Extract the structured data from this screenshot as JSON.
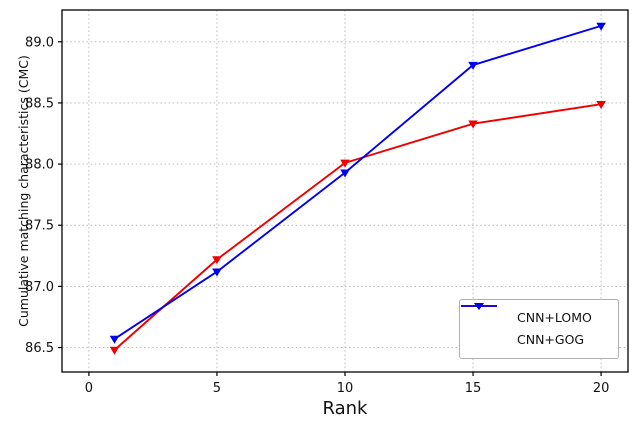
{
  "figure": {
    "background": "#ffffff",
    "spine_color": "#000000",
    "tick_label_color": "#111111"
  },
  "chart_data": {
    "type": "line",
    "title": "",
    "xlabel": "Rank",
    "ylabel": "Cumulative matching characteristics (CMC)",
    "x": [
      1,
      5,
      10,
      15,
      20
    ],
    "series": [
      {
        "name": "CNN+LOMO",
        "color": "#ee0000",
        "marker": "triangle-down",
        "values": [
          86.48,
          87.22,
          88.01,
          88.33,
          88.49
        ]
      },
      {
        "name": "CNN+GOG",
        "color": "#0000ee",
        "marker": "triangle-down",
        "values": [
          86.57,
          87.12,
          87.93,
          88.81,
          89.13
        ]
      }
    ],
    "xlim": [
      -1.05,
      21.05
    ],
    "ylim": [
      86.3,
      89.26
    ],
    "xticks": {
      "values": [
        0,
        5,
        10,
        15,
        20
      ],
      "labels": [
        "0",
        "5",
        "10",
        "15",
        "20"
      ]
    },
    "yticks": {
      "values": [
        86.5,
        87.0,
        87.5,
        88.0,
        88.5,
        89.0
      ],
      "labels": [
        "86.5",
        "87.0",
        "87.5",
        "88.0",
        "88.5",
        "89.0"
      ]
    },
    "grid": true,
    "grid_color": "#b3b3b3",
    "legend": {
      "position": "lower right",
      "entries": [
        "CNN+LOMO",
        "CNN+GOG"
      ]
    }
  }
}
